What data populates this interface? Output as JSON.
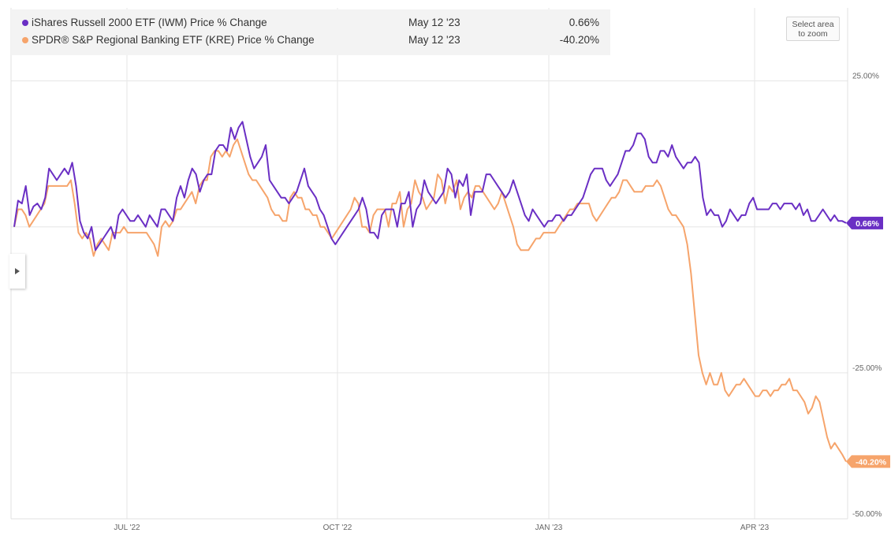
{
  "legend": {
    "rows": [
      {
        "name": "iShares Russell 2000 ETF (IWM) Price % Change",
        "date": "May 12 '23",
        "value": "0.66%",
        "color": "#6a2fc4"
      },
      {
        "name": "SPDR® S&P Regional Banking ETF (KRE) Price % Change",
        "date": "May 12 '23",
        "value": "-40.20%",
        "color": "#f6a46b"
      }
    ]
  },
  "controls": {
    "zoom_line1": "Select area",
    "zoom_line2": "to zoom",
    "side_toggle_icon": "caret-right-icon"
  },
  "chart_data": {
    "type": "line",
    "ylim": [
      -50,
      37.5
    ],
    "y_ticks": [
      {
        "value": 25,
        "label": "25.00%"
      },
      {
        "value": -25,
        "label": "-25.00%"
      },
      {
        "value": -50,
        "label": "-50.00%"
      }
    ],
    "x_ticks": [
      "JUL '22",
      "OCT '22",
      "JAN '23",
      "APR '23"
    ],
    "grid": true,
    "series": [
      {
        "name": "iShares Russell 2000 ETF (IWM) Price % Change",
        "color": "#6a2fc4",
        "end_label": "0.66%",
        "values": [
          0,
          4.5,
          4,
          7,
          2,
          3.5,
          4,
          3,
          5,
          10,
          9,
          8,
          9,
          10,
          9,
          11,
          7,
          1,
          -1,
          -2,
          0,
          -4,
          -3,
          -2,
          -1,
          0,
          -2,
          2,
          3,
          2,
          1,
          1,
          2,
          1,
          0,
          2,
          1,
          0,
          3,
          3,
          2,
          1,
          5,
          7,
          5,
          8,
          10,
          9,
          6,
          8,
          9,
          9,
          13,
          14,
          14,
          13,
          17,
          15,
          17,
          18,
          15,
          12,
          10,
          11,
          12,
          14,
          8,
          7,
          6,
          5,
          5,
          4,
          5,
          6,
          8,
          10,
          7,
          6,
          5,
          3,
          2,
          0,
          -2,
          -3,
          -2,
          -1,
          0,
          1,
          2,
          3,
          5,
          3,
          -1,
          -1,
          -2,
          2,
          3,
          3,
          3,
          0,
          4,
          4,
          6,
          0,
          3,
          4,
          8,
          6,
          5,
          4,
          5,
          6,
          10,
          9,
          5,
          8,
          7,
          9,
          2,
          6,
          6,
          6,
          9,
          9,
          8,
          7,
          6,
          5,
          6,
          8,
          6,
          4,
          2,
          1,
          3,
          2,
          1,
          0,
          1,
          1,
          2,
          2,
          1,
          2,
          2,
          3,
          4,
          5,
          7,
          9,
          10,
          10,
          10,
          8,
          7,
          8,
          9,
          11,
          13,
          13,
          14,
          16,
          16,
          15,
          12,
          11,
          11,
          13,
          13,
          12,
          14,
          12,
          11,
          10,
          11,
          11,
          12,
          11,
          5,
          2,
          3,
          2,
          2,
          0,
          1,
          3,
          2,
          1,
          2,
          2,
          4,
          5,
          3,
          3,
          3,
          3,
          4,
          4,
          3,
          4,
          4,
          4,
          3,
          4,
          2,
          3,
          1,
          1,
          2,
          3,
          2,
          1,
          2,
          1,
          1,
          0.66
        ]
      },
      {
        "name": "SPDR® S&P Regional Banking ETF (KRE) Price % Change",
        "color": "#f6a46b",
        "end_label": "-40.20%",
        "values": [
          0,
          3,
          3,
          2,
          0,
          1,
          2,
          3,
          4,
          7,
          7,
          7,
          7,
          7,
          7,
          8,
          4,
          -1,
          -2,
          -1,
          -2,
          -5,
          -3,
          -2,
          -3,
          -4,
          -1,
          -1,
          -1,
          0,
          -1,
          -1,
          -1,
          -1,
          -1,
          -1,
          -2,
          -3,
          -5,
          0,
          1,
          0,
          1,
          3,
          3,
          4,
          5,
          6,
          4,
          7,
          8,
          8,
          12,
          13,
          13,
          12,
          13,
          12,
          14,
          15,
          13,
          11,
          9,
          8,
          8,
          7,
          6,
          5,
          3,
          2,
          2,
          1,
          1,
          5,
          6,
          5,
          5,
          3,
          3,
          2,
          2,
          0,
          0,
          -1,
          -2,
          -1,
          0,
          1,
          2,
          3,
          5,
          4,
          0,
          0,
          -1,
          2,
          3,
          3,
          3,
          0,
          4,
          4,
          6,
          0,
          3,
          4,
          8,
          6,
          5,
          3,
          4,
          5,
          9,
          8,
          4,
          7,
          6,
          8,
          3,
          5,
          6,
          5,
          7,
          7,
          6,
          5,
          4,
          3,
          4,
          6,
          4,
          2,
          0,
          -3,
          -4,
          -4,
          -4,
          -3,
          -2,
          -2,
          -1,
          -1,
          -1,
          -1,
          0,
          1,
          2,
          3,
          3,
          4,
          4,
          4,
          4,
          2,
          1,
          2,
          3,
          4,
          5,
          5,
          6,
          8,
          8,
          7,
          6,
          6,
          6,
          7,
          7,
          7,
          8,
          7,
          5,
          3,
          2,
          2,
          1,
          0,
          -3,
          -8,
          -15,
          -22,
          -25,
          -27,
          -25,
          -27,
          -27,
          -25,
          -28,
          -29,
          -28,
          -27,
          -27,
          -26,
          -27,
          -28,
          -29,
          -29,
          -28,
          -28,
          -29,
          -28,
          -28,
          -27,
          -27,
          -26,
          -28,
          -28,
          -29,
          -30,
          -32,
          -31,
          -29,
          -30,
          -33,
          -36,
          -38,
          -37,
          -38,
          -39,
          -40.2
        ]
      }
    ]
  }
}
